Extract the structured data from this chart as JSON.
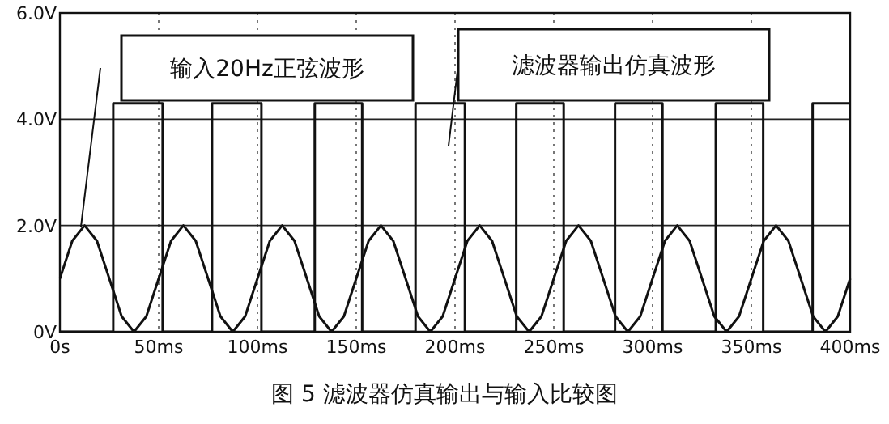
{
  "chart_data": {
    "type": "line",
    "title": "图 5  滤波器仿真输出与输入比较图",
    "series": [
      {
        "color": "#111111",
        "x": [
          0,
          6.25,
          12.5,
          18.75,
          25,
          31.25,
          37.5,
          43.75,
          50,
          56.25,
          62.5,
          68.75,
          75,
          81.25,
          87.5,
          93.75,
          100,
          106.25,
          112.5,
          118.75,
          125,
          131.25,
          137.5,
          143.75,
          150,
          156.25,
          162.5,
          168.75,
          175,
          181.25,
          187.5,
          193.75,
          200,
          206.25,
          212.5,
          218.75,
          225,
          231.25,
          237.5,
          243.75,
          250,
          256.25,
          262.5,
          268.75,
          275,
          281.25,
          287.5,
          293.75,
          300,
          306.25,
          312.5,
          318.75,
          325,
          331.25,
          337.5,
          343.75,
          350,
          356.25,
          362.5,
          368.75,
          375,
          381.25,
          387.5,
          393.75,
          400
        ],
        "values": [
          1,
          1.71,
          2,
          1.71,
          1,
          0.29,
          0,
          0.29,
          1,
          1.71,
          2,
          1.71,
          1,
          0.29,
          0,
          0.29,
          1,
          1.71,
          2,
          1.71,
          1,
          0.29,
          0,
          0.29,
          1,
          1.71,
          2,
          1.71,
          1,
          0.29,
          0,
          0.29,
          1,
          1.71,
          2,
          1.71,
          1,
          0.29,
          0,
          0.29,
          1,
          1.71,
          2,
          1.71,
          1,
          0.29,
          0,
          0.29,
          1,
          1.71,
          2,
          1.71,
          1,
          0.29,
          0,
          0.29,
          1,
          1.71,
          2,
          1.71,
          1,
          0.29,
          0,
          0.29,
          1
        ]
      },
      {
        "color": "#111111",
        "x": [
          0,
          27,
          27,
          52,
          52,
          77,
          77,
          102,
          102,
          129,
          129,
          153,
          153,
          180,
          180,
          205,
          205,
          231,
          231,
          255,
          255,
          281,
          281,
          305,
          305,
          332,
          332,
          356,
          356,
          381,
          381,
          400
        ],
        "values": [
          0,
          0,
          4.3,
          4.3,
          0,
          0,
          4.3,
          4.3,
          0,
          0,
          4.3,
          4.3,
          0,
          0,
          4.3,
          4.3,
          0,
          0,
          4.3,
          4.3,
          0,
          0,
          4.3,
          4.3,
          0,
          0,
          4.3,
          4.3,
          0,
          0,
          4.3,
          4.3
        ]
      }
    ],
    "annotations": [
      "输入20Hz正弦波形",
      "滤波器输出仿真波形"
    ],
    "xlim": [
      0,
      400
    ],
    "xticks": [
      {
        "value": 0,
        "label": "0s"
      },
      {
        "value": 50,
        "label": "50ms"
      },
      {
        "value": 100,
        "label": "100ms"
      },
      {
        "value": 150,
        "label": "150ms"
      },
      {
        "value": 200,
        "label": "200ms"
      },
      {
        "value": 250,
        "label": "250ms"
      },
      {
        "value": 300,
        "label": "300ms"
      },
      {
        "value": 350,
        "label": "350ms"
      },
      {
        "value": 400,
        "label": "400ms"
      }
    ],
    "ylim": [
      0,
      6
    ],
    "yticks": [
      {
        "value": 0,
        "label": "0V"
      },
      {
        "value": 2,
        "label": "2.0V"
      },
      {
        "value": 4,
        "label": "4.0V"
      },
      {
        "value": 6,
        "label": "6.0V"
      }
    ],
    "grid": true
  }
}
